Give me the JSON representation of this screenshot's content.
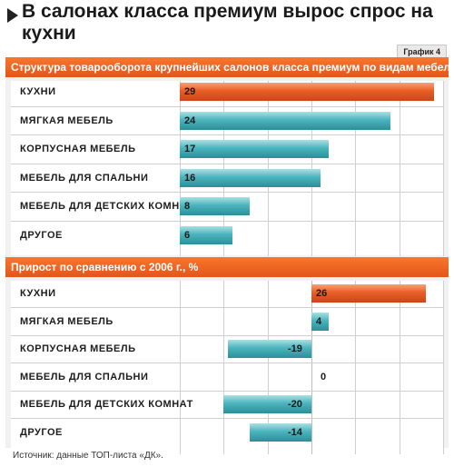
{
  "title": "В салонах класса премиум вырос спрос на кухни",
  "figure_label": "График 4",
  "source": "Источник: данные ТОП-листа «ДК».",
  "colors": {
    "accent": "#ea5d25",
    "bar_primary": "#ea5d25",
    "bar_secondary": "#4ab4bd"
  },
  "chart_data": [
    {
      "type": "bar",
      "orientation": "horizontal",
      "title": "Структура товарооборота крупнейших салонов класса премиум по видам мебели,%",
      "categories": [
        "КУХНИ",
        "МЯГКАЯ МЕБЕЛЬ",
        "КОРПУСНАЯ МЕБЕЛЬ",
        "МЕБЕЛЬ ДЛЯ СПАЛЬНИ",
        "МЕБЕЛЬ ДЛЯ ДЕТСКИХ КОМНАТ",
        "ДРУГОЕ"
      ],
      "values": [
        29,
        24,
        17,
        16,
        8,
        6
      ],
      "xlim": [
        0,
        30
      ],
      "grid": true,
      "highlight_index": 0
    },
    {
      "type": "bar",
      "orientation": "horizontal",
      "title": "Прирост по сравнению с 2006 г., %",
      "categories": [
        "КУХНИ",
        "МЯГКАЯ МЕБЕЛЬ",
        "КОРПУСНАЯ МЕБЕЛЬ",
        "МЕБЕЛЬ ДЛЯ СПАЛЬНИ",
        "МЕБЕЛЬ ДЛЯ ДЕТСКИХ КОМНАТ",
        "ДРУГОЕ"
      ],
      "values": [
        26,
        4,
        -19,
        0,
        -20,
        -14
      ],
      "xlim": [
        -30,
        30
      ],
      "grid": true,
      "highlight_index": 0
    }
  ]
}
